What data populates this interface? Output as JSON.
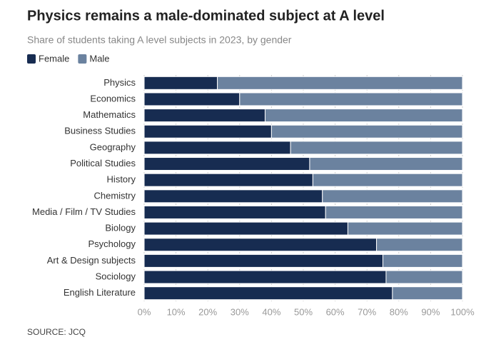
{
  "chart_data": {
    "type": "stacked-bar-horizontal",
    "title": "Physics remains a male-dominated subject at A level",
    "subtitle": "Share of students taking A level subjects in 2023, by gender",
    "source": "SOURCE: JCQ",
    "categories": [
      "Physics",
      "Economics",
      "Mathematics",
      "Business Studies",
      "Geography",
      "Political Studies",
      "History",
      "Chemistry",
      "Media / Film / TV Studies",
      "Biology",
      "Psychology",
      "Art & Design subjects",
      "Sociology",
      "English Literature"
    ],
    "series": [
      {
        "name": "Female",
        "color": "#172c51",
        "values": [
          23,
          30,
          38,
          40,
          46,
          52,
          53,
          56,
          57,
          64,
          73,
          75,
          76,
          78
        ]
      },
      {
        "name": "Male",
        "color": "#6b829f",
        "values": [
          77,
          70,
          62,
          60,
          54,
          48,
          47,
          44,
          43,
          36,
          27,
          25,
          24,
          22
        ]
      }
    ],
    "xlim": [
      0,
      100
    ],
    "xticks": [
      {
        "value": 0,
        "label": "0%"
      },
      {
        "value": 10,
        "label": "10%"
      },
      {
        "value": 20,
        "label": "20%"
      },
      {
        "value": 30,
        "label": "30%"
      },
      {
        "value": 40,
        "label": "40%"
      },
      {
        "value": 50,
        "label": "50%"
      },
      {
        "value": 60,
        "label": "60%"
      },
      {
        "value": 70,
        "label": "70%"
      },
      {
        "value": 80,
        "label": "80%"
      },
      {
        "value": 90,
        "label": "90%"
      },
      {
        "value": 100,
        "label": "100%"
      }
    ],
    "grid": true
  }
}
